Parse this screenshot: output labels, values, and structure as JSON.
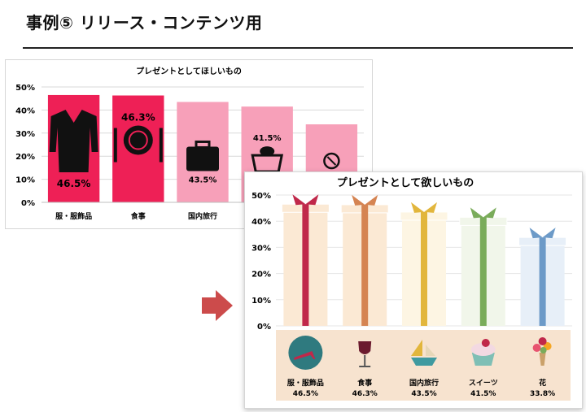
{
  "page": {
    "title": "事例⑤ リリース・コンテンツ用"
  },
  "chart_data": [
    {
      "type": "bar",
      "title": "プレゼントとしてほしいもの",
      "categories": [
        "服・服飾品",
        "食事",
        "国内旅行",
        "",
        ""
      ],
      "values": [
        46.5,
        46.3,
        43.5,
        41.5,
        33.8
      ],
      "data_labels": [
        "46.5%",
        "46.3%",
        "43.5%",
        "41.5%",
        ""
      ],
      "icons": [
        "coat-icon",
        "plate-and-cutlery-icon",
        "suitcase-icon",
        "cake-icon",
        "flower-icon"
      ],
      "ylim": [
        0,
        50
      ],
      "yticks": [
        "0%",
        "10%",
        "20%",
        "30%",
        "40%",
        "50%"
      ],
      "colors": [
        "#ee2056",
        "#ee2056",
        "#f7a0b9",
        "#f7a0b9",
        "#f7a0b9"
      ],
      "grid": true
    },
    {
      "type": "bar",
      "title": "プレゼントとして欲しいもの",
      "categories": [
        "服・服飾品",
        "食事",
        "国内旅行",
        "スイーツ",
        "花"
      ],
      "values": [
        46.5,
        46.3,
        43.5,
        41.5,
        33.8
      ],
      "data_labels": [
        "46.5%",
        "46.3%",
        "43.5%",
        "41.5%",
        "33.8%"
      ],
      "icons": [
        "high-heel-icon",
        "wine-glass-icon",
        "sailboat-icon",
        "cupcake-icon",
        "bouquet-icon"
      ],
      "ylim": [
        0,
        50
      ],
      "yticks": [
        "0%",
        "10%",
        "20%",
        "30%",
        "40%",
        "50%"
      ],
      "box_colors": [
        "#fbe9d4",
        "#fbe9d4",
        "#fdf5e3",
        "#f1f6ea",
        "#e7eff8"
      ],
      "ribbon_colors": [
        "#c0284a",
        "#d58452",
        "#e2b63c",
        "#7aac5a",
        "#6c9ac8"
      ],
      "label_panel_color": "#f7e3cf",
      "grid": true
    }
  ],
  "arrow_color": "#cc4b4b"
}
